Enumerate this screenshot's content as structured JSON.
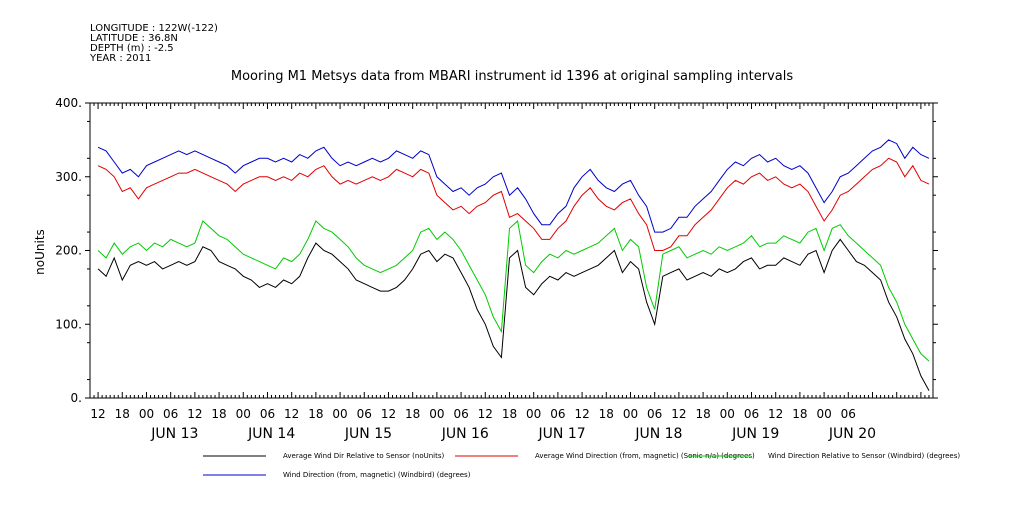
{
  "meta": {
    "longitude": "LONGITUDE : 122W(-122)",
    "latitude": "LATITUDE : 36.8N",
    "depth": "DEPTH (m) : -2.5",
    "year": "YEAR : 2011"
  },
  "chart_data": {
    "type": "line",
    "title": "Mooring M1 Metsys data from MBARI instrument id 1396 at original sampling intervals",
    "ylabel": "noUnits",
    "ylim": [
      0,
      400
    ],
    "yticks": [
      "0.",
      "100.",
      "200.",
      "300.",
      "400."
    ],
    "xlim_hours": [
      -14,
      195
    ],
    "hour_ticks": [
      "12",
      "18",
      "00",
      "06",
      "12",
      "18",
      "00",
      "06",
      "12",
      "18",
      "00",
      "06",
      "12",
      "18",
      "00",
      "06",
      "12",
      "18",
      "00",
      "06",
      "12",
      "18",
      "00",
      "06",
      "12",
      "18",
      "00",
      "06",
      "12",
      "18",
      "00",
      "06"
    ],
    "day_labels": [
      "JUN 13",
      "JUN 14",
      "JUN 15",
      "JUN 16",
      "JUN 17",
      "JUN 18",
      "JUN 19",
      "JUN 20"
    ],
    "x_units": "hours since 2011-06-13 00:00",
    "series": [
      {
        "name": "Average Wind Dir Relative to Sensor (noUnits)",
        "color": "#000000",
        "x": [
          -12,
          -10,
          -8,
          -6,
          -4,
          -2,
          0,
          2,
          4,
          6,
          8,
          10,
          12,
          14,
          16,
          18,
          20,
          22,
          24,
          26,
          28,
          30,
          32,
          34,
          36,
          38,
          40,
          42,
          44,
          46,
          48,
          50,
          52,
          54,
          56,
          58,
          60,
          62,
          64,
          66,
          68,
          70,
          72,
          74,
          76,
          78,
          80,
          82,
          84,
          86,
          88,
          90,
          92,
          94,
          96,
          98,
          100,
          102,
          104,
          106,
          108,
          110,
          112,
          114,
          116,
          118,
          120,
          122,
          124,
          126,
          128,
          130,
          132,
          134,
          136,
          138,
          140,
          142,
          144,
          146,
          148,
          150,
          152,
          154,
          156,
          158,
          160,
          162,
          164,
          166,
          168,
          170,
          172,
          174,
          176,
          178,
          180,
          182,
          184,
          186,
          188,
          190,
          192,
          194
        ],
        "y": [
          175,
          165,
          190,
          160,
          180,
          185,
          180,
          185,
          175,
          180,
          185,
          180,
          185,
          205,
          200,
          185,
          180,
          175,
          165,
          160,
          150,
          155,
          150,
          160,
          155,
          165,
          190,
          210,
          200,
          195,
          185,
          175,
          160,
          155,
          150,
          145,
          145,
          150,
          160,
          175,
          195,
          200,
          185,
          195,
          190,
          170,
          150,
          120,
          100,
          70,
          55,
          190,
          200,
          150,
          140,
          155,
          165,
          160,
          170,
          165,
          170,
          175,
          180,
          190,
          200,
          170,
          185,
          175,
          130,
          100,
          165,
          170,
          175,
          160,
          165,
          170,
          165,
          175,
          170,
          175,
          185,
          190,
          175,
          180,
          180,
          190,
          185,
          180,
          195,
          200,
          170,
          200,
          215,
          200,
          185,
          180,
          170,
          160,
          130,
          110,
          80,
          60,
          30,
          10
        ]
      },
      {
        "name": "Average Wind Direction (from, magnetic) (Sonic-n/a) (degrees)",
        "color": "#e00000",
        "x": [
          -12,
          -10,
          -8,
          -6,
          -4,
          -2,
          0,
          2,
          4,
          6,
          8,
          10,
          12,
          14,
          16,
          18,
          20,
          22,
          24,
          26,
          28,
          30,
          32,
          34,
          36,
          38,
          40,
          42,
          44,
          46,
          48,
          50,
          52,
          54,
          56,
          58,
          60,
          62,
          64,
          66,
          68,
          70,
          72,
          74,
          76,
          78,
          80,
          82,
          84,
          86,
          88,
          90,
          92,
          94,
          96,
          98,
          100,
          102,
          104,
          106,
          108,
          110,
          112,
          114,
          116,
          118,
          120,
          122,
          124,
          126,
          128,
          130,
          132,
          134,
          136,
          138,
          140,
          142,
          144,
          146,
          148,
          150,
          152,
          154,
          156,
          158,
          160,
          162,
          164,
          166,
          168,
          170,
          172,
          174,
          176,
          178,
          180,
          182,
          184,
          186,
          188,
          190,
          192,
          194
        ],
        "y": [
          315,
          310,
          300,
          280,
          285,
          270,
          285,
          290,
          295,
          300,
          305,
          305,
          310,
          305,
          300,
          295,
          290,
          280,
          290,
          295,
          300,
          300,
          295,
          300,
          295,
          305,
          300,
          310,
          315,
          300,
          290,
          295,
          290,
          295,
          300,
          295,
          300,
          310,
          305,
          300,
          310,
          305,
          275,
          265,
          255,
          260,
          250,
          260,
          265,
          275,
          280,
          245,
          250,
          240,
          230,
          215,
          215,
          230,
          240,
          260,
          275,
          285,
          270,
          260,
          255,
          265,
          270,
          250,
          235,
          200,
          200,
          205,
          220,
          220,
          235,
          245,
          255,
          270,
          285,
          295,
          290,
          300,
          305,
          295,
          300,
          290,
          285,
          290,
          280,
          260,
          240,
          255,
          275,
          280,
          290,
          300,
          310,
          315,
          325,
          320,
          300,
          315,
          295,
          290
        ]
      },
      {
        "name": "Wind Direction Relative to Sensor (Windbird) (degrees)",
        "color": "#00cc00",
        "x": [
          -12,
          -10,
          -8,
          -6,
          -4,
          -2,
          0,
          2,
          4,
          6,
          8,
          10,
          12,
          14,
          16,
          18,
          20,
          22,
          24,
          26,
          28,
          30,
          32,
          34,
          36,
          38,
          40,
          42,
          44,
          46,
          48,
          50,
          52,
          54,
          56,
          58,
          60,
          62,
          64,
          66,
          68,
          70,
          72,
          74,
          76,
          78,
          80,
          82,
          84,
          86,
          88,
          90,
          92,
          94,
          96,
          98,
          100,
          102,
          104,
          106,
          108,
          110,
          112,
          114,
          116,
          118,
          120,
          122,
          124,
          126,
          128,
          130,
          132,
          134,
          136,
          138,
          140,
          142,
          144,
          146,
          148,
          150,
          152,
          154,
          156,
          158,
          160,
          162,
          164,
          166,
          168,
          170,
          172,
          174,
          176,
          178,
          180,
          182,
          184,
          186,
          188,
          190,
          192,
          194
        ],
        "y": [
          200,
          190,
          210,
          195,
          205,
          210,
          200,
          210,
          205,
          215,
          210,
          205,
          210,
          240,
          230,
          220,
          215,
          205,
          195,
          190,
          185,
          180,
          175,
          190,
          185,
          195,
          215,
          240,
          230,
          225,
          215,
          205,
          190,
          180,
          175,
          170,
          175,
          180,
          190,
          200,
          225,
          230,
          215,
          225,
          215,
          200,
          180,
          160,
          140,
          110,
          90,
          230,
          240,
          180,
          170,
          185,
          195,
          190,
          200,
          195,
          200,
          205,
          210,
          220,
          230,
          200,
          215,
          205,
          150,
          120,
          195,
          200,
          205,
          190,
          195,
          200,
          195,
          205,
          200,
          205,
          210,
          220,
          205,
          210,
          210,
          220,
          215,
          210,
          225,
          230,
          200,
          230,
          235,
          220,
          210,
          200,
          190,
          180,
          150,
          130,
          100,
          80,
          60,
          50
        ]
      },
      {
        "name": "Wind Direction (from, magnetic) (Windbird) (degrees)",
        "color": "#0000cc",
        "x": [
          -12,
          -10,
          -8,
          -6,
          -4,
          -2,
          0,
          2,
          4,
          6,
          8,
          10,
          12,
          14,
          16,
          18,
          20,
          22,
          24,
          26,
          28,
          30,
          32,
          34,
          36,
          38,
          40,
          42,
          44,
          46,
          48,
          50,
          52,
          54,
          56,
          58,
          60,
          62,
          64,
          66,
          68,
          70,
          72,
          74,
          76,
          78,
          80,
          82,
          84,
          86,
          88,
          90,
          92,
          94,
          96,
          98,
          100,
          102,
          104,
          106,
          108,
          110,
          112,
          114,
          116,
          118,
          120,
          122,
          124,
          126,
          128,
          130,
          132,
          134,
          136,
          138,
          140,
          142,
          144,
          146,
          148,
          150,
          152,
          154,
          156,
          158,
          160,
          162,
          164,
          166,
          168,
          170,
          172,
          174,
          176,
          178,
          180,
          182,
          184,
          186,
          188,
          190,
          192,
          194
        ],
        "y": [
          340,
          335,
          320,
          305,
          310,
          300,
          315,
          320,
          325,
          330,
          335,
          330,
          335,
          330,
          325,
          320,
          315,
          305,
          315,
          320,
          325,
          325,
          320,
          325,
          320,
          330,
          325,
          335,
          340,
          325,
          315,
          320,
          315,
          320,
          325,
          320,
          325,
          335,
          330,
          325,
          335,
          330,
          300,
          290,
          280,
          285,
          275,
          285,
          290,
          300,
          305,
          275,
          285,
          270,
          250,
          235,
          235,
          250,
          260,
          285,
          300,
          310,
          295,
          285,
          280,
          290,
          295,
          275,
          260,
          225,
          225,
          230,
          245,
          245,
          260,
          270,
          280,
          295,
          310,
          320,
          315,
          325,
          330,
          320,
          325,
          315,
          310,
          315,
          305,
          285,
          265,
          280,
          300,
          305,
          315,
          325,
          335,
          340,
          350,
          345,
          325,
          340,
          330,
          325
        ]
      }
    ]
  }
}
